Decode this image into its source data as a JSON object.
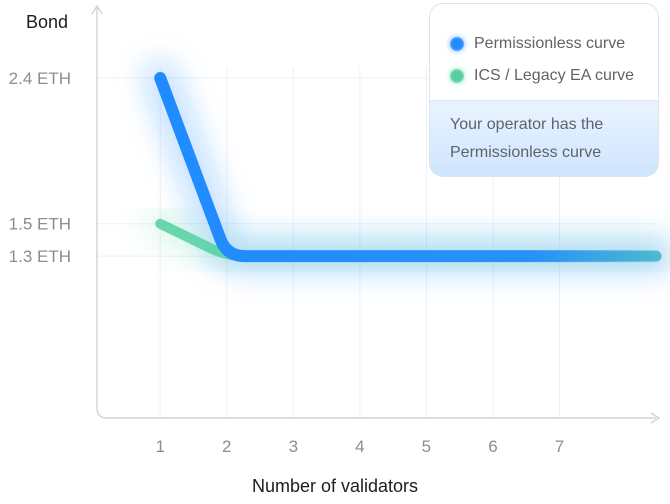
{
  "chart_data": {
    "type": "line",
    "ylabel": "Bond",
    "xlabel": "Number of validators",
    "x": [
      1,
      2,
      3,
      4,
      5,
      6,
      7
    ],
    "xlim": [
      0.05,
      8.45
    ],
    "ylim": [
      0.3,
      2.4
    ],
    "yticks": [
      {
        "value": 2.4,
        "label": "2.4 ETH"
      },
      {
        "value": 1.5,
        "label": "1.5 ETH"
      },
      {
        "value": 1.3,
        "label": "1.3 ETH"
      }
    ],
    "grid": true,
    "legend_position": "top-right",
    "series": [
      {
        "name": "Permissionless curve",
        "color": "#1f8bff",
        "points": [
          [
            1,
            2.4
          ],
          [
            2,
            1.3
          ],
          [
            8.45,
            1.3
          ]
        ]
      },
      {
        "name": "ICS / Legacy EA curve",
        "color": "#52d0a0",
        "points": [
          [
            1,
            1.5
          ],
          [
            2,
            1.3
          ],
          [
            8.45,
            1.3
          ]
        ]
      }
    ]
  },
  "legend": {
    "note": "Your operator has the Permissionless curve"
  },
  "colors": {
    "accent": "#1f8bff",
    "secondary": "#52d0a0"
  }
}
